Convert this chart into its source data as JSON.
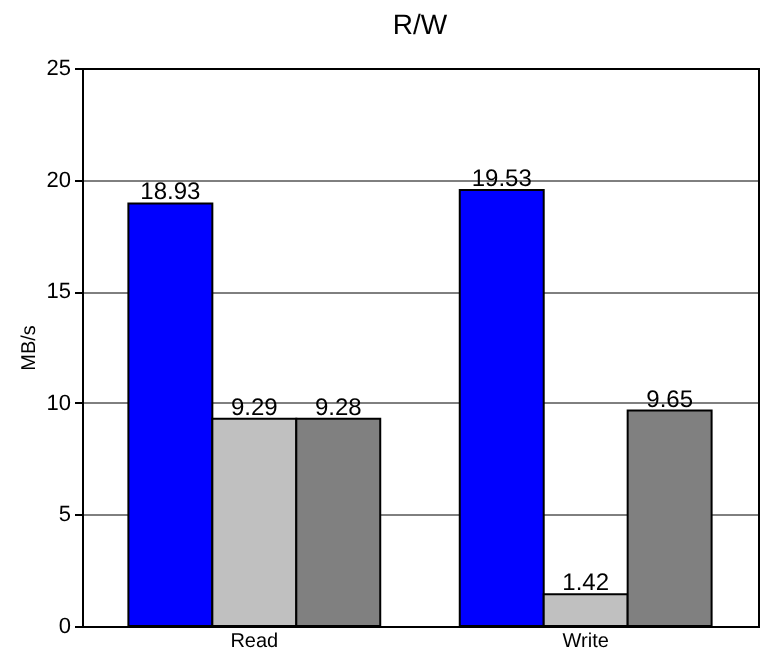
{
  "chart_data": {
    "type": "bar",
    "title": "R/W",
    "ylabel": "MB/s",
    "categories": [
      "Read",
      "Write"
    ],
    "series": [
      {
        "color": "#0000ff",
        "values": [
          18.93,
          19.53
        ]
      },
      {
        "color": "#c0c0c0",
        "values": [
          9.29,
          1.42
        ]
      },
      {
        "color": "#808080",
        "values": [
          9.28,
          9.65
        ]
      }
    ],
    "ylim": [
      0,
      25
    ],
    "yticks": [
      0,
      5,
      10,
      15,
      20,
      25
    ],
    "grid": "y",
    "data_labels": true
  }
}
